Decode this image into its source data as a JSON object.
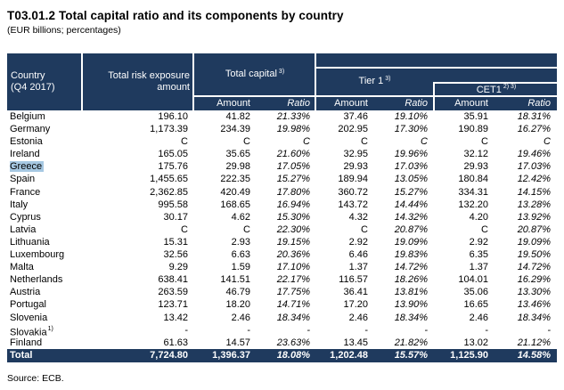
{
  "title": "T03.01.2 Total capital ratio and its components by country",
  "subtitle": "(EUR billions; percentages)",
  "source": "Source: ECB.",
  "colors": {
    "header_bg": "#1f3a5e",
    "header_text": "#ffffff",
    "greece_highlight": "#a6c8e2",
    "body_text": "#000000"
  },
  "table": {
    "corner": {
      "line1": "Country",
      "line2": "(Q4 2017)"
    },
    "col2": {
      "line1": "Total risk exposure",
      "line2": "amount"
    },
    "groups": [
      {
        "label": "Total capital",
        "sup": "3)"
      },
      {
        "label": "Tier 1",
        "sup": "3)"
      },
      {
        "label": "CET1",
        "sup": "2) 3)"
      }
    ],
    "subheaders": {
      "amount": "Amount",
      "ratio": "Ratio"
    },
    "columns": [
      "Total risk exposure amount",
      "Total capital Amount",
      "Total capital Ratio",
      "Tier 1 Amount",
      "Tier 1 Ratio",
      "CET1 Amount",
      "CET1 Ratio"
    ],
    "rows": [
      {
        "country": "Belgium",
        "sup": "",
        "highlight": false,
        "values": [
          "196.10",
          "41.82",
          "21.33%",
          "37.46",
          "19.10%",
          "35.91",
          "18.31%"
        ]
      },
      {
        "country": "Germany",
        "sup": "",
        "highlight": false,
        "values": [
          "1,173.39",
          "234.39",
          "19.98%",
          "202.95",
          "17.30%",
          "190.89",
          "16.27%"
        ]
      },
      {
        "country": "Estonia",
        "sup": "",
        "highlight": false,
        "values": [
          "C",
          "C",
          "C",
          "C",
          "C",
          "C",
          "C"
        ]
      },
      {
        "country": "Ireland",
        "sup": "",
        "highlight": false,
        "values": [
          "165.05",
          "35.65",
          "21.60%",
          "32.95",
          "19.96%",
          "32.12",
          "19.46%"
        ]
      },
      {
        "country": "Greece",
        "sup": "",
        "highlight": true,
        "values": [
          "175.76",
          "29.98",
          "17.05%",
          "29.93",
          "17.03%",
          "29.93",
          "17.03%"
        ]
      },
      {
        "country": "Spain",
        "sup": "",
        "highlight": false,
        "values": [
          "1,455.65",
          "222.35",
          "15.27%",
          "189.94",
          "13.05%",
          "180.84",
          "12.42%"
        ]
      },
      {
        "country": "France",
        "sup": "",
        "highlight": false,
        "values": [
          "2,362.85",
          "420.49",
          "17.80%",
          "360.72",
          "15.27%",
          "334.31",
          "14.15%"
        ]
      },
      {
        "country": "Italy",
        "sup": "",
        "highlight": false,
        "values": [
          "995.58",
          "168.65",
          "16.94%",
          "143.72",
          "14.44%",
          "132.20",
          "13.28%"
        ]
      },
      {
        "country": "Cyprus",
        "sup": "",
        "highlight": false,
        "values": [
          "30.17",
          "4.62",
          "15.30%",
          "4.32",
          "14.32%",
          "4.20",
          "13.92%"
        ]
      },
      {
        "country": "Latvia",
        "sup": "",
        "highlight": false,
        "values": [
          "C",
          "C",
          "22.30%",
          "C",
          "20.87%",
          "C",
          "20.87%"
        ]
      },
      {
        "country": "Lithuania",
        "sup": "",
        "highlight": false,
        "values": [
          "15.31",
          "2.93",
          "19.15%",
          "2.92",
          "19.09%",
          "2.92",
          "19.09%"
        ]
      },
      {
        "country": "Luxembourg",
        "sup": "",
        "highlight": false,
        "values": [
          "32.56",
          "6.63",
          "20.36%",
          "6.46",
          "19.83%",
          "6.35",
          "19.50%"
        ]
      },
      {
        "country": "Malta",
        "sup": "",
        "highlight": false,
        "values": [
          "9.29",
          "1.59",
          "17.10%",
          "1.37",
          "14.72%",
          "1.37",
          "14.72%"
        ]
      },
      {
        "country": "Netherlands",
        "sup": "",
        "highlight": false,
        "values": [
          "638.41",
          "141.51",
          "22.17%",
          "116.57",
          "18.26%",
          "104.01",
          "16.29%"
        ]
      },
      {
        "country": "Austria",
        "sup": "",
        "highlight": false,
        "values": [
          "263.59",
          "46.79",
          "17.75%",
          "36.41",
          "13.81%",
          "35.06",
          "13.30%"
        ]
      },
      {
        "country": "Portugal",
        "sup": "",
        "highlight": false,
        "values": [
          "123.71",
          "18.20",
          "14.71%",
          "17.20",
          "13.90%",
          "16.65",
          "13.46%"
        ]
      },
      {
        "country": "Slovenia",
        "sup": "",
        "highlight": false,
        "values": [
          "13.42",
          "2.46",
          "18.34%",
          "2.46",
          "18.34%",
          "2.46",
          "18.34%"
        ]
      },
      {
        "country": "Slovakia",
        "sup": "1)",
        "highlight": false,
        "values": [
          "-",
          "-",
          "-",
          "-",
          "-",
          "-",
          "-"
        ]
      },
      {
        "country": "Finland",
        "sup": "",
        "highlight": false,
        "values": [
          "61.63",
          "14.57",
          "23.63%",
          "13.45",
          "21.82%",
          "13.02",
          "21.12%"
        ]
      }
    ],
    "total": {
      "label": "Total",
      "values": [
        "7,724.80",
        "1,396.37",
        "18.08%",
        "1,202.48",
        "15.57%",
        "1,125.90",
        "14.58%"
      ]
    }
  }
}
